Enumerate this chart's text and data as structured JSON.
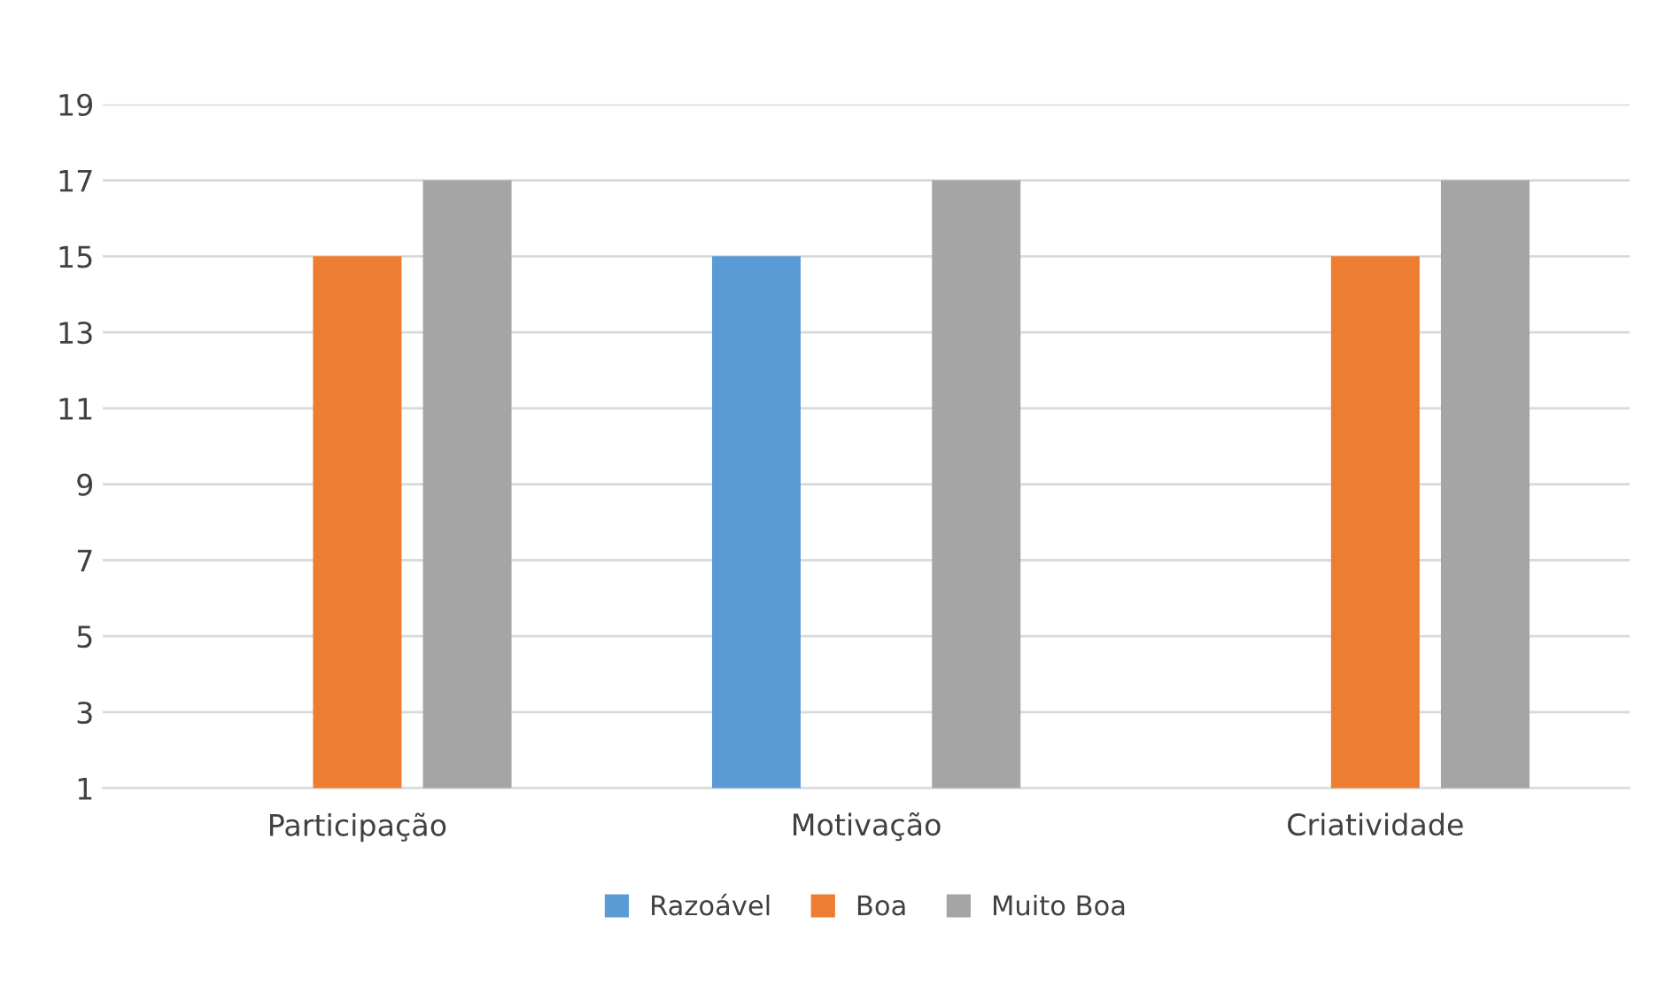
{
  "chart_data": {
    "type": "bar",
    "categories": [
      "Participação",
      "Motivação",
      "Criatividade"
    ],
    "series": [
      {
        "name": "Razoável",
        "color": "#5b9bd5",
        "values": [
          null,
          15,
          null
        ]
      },
      {
        "name": "Boa",
        "color": "#ed7d31",
        "values": [
          15,
          null,
          15
        ]
      },
      {
        "name": "Muito Boa",
        "color": "#a5a5a5",
        "values": [
          17,
          17,
          17
        ]
      }
    ],
    "ylim": [
      1,
      19
    ],
    "yticks": [
      1,
      3,
      5,
      7,
      9,
      11,
      13,
      15,
      17,
      19
    ],
    "grid": "y",
    "legend": "bottom"
  }
}
